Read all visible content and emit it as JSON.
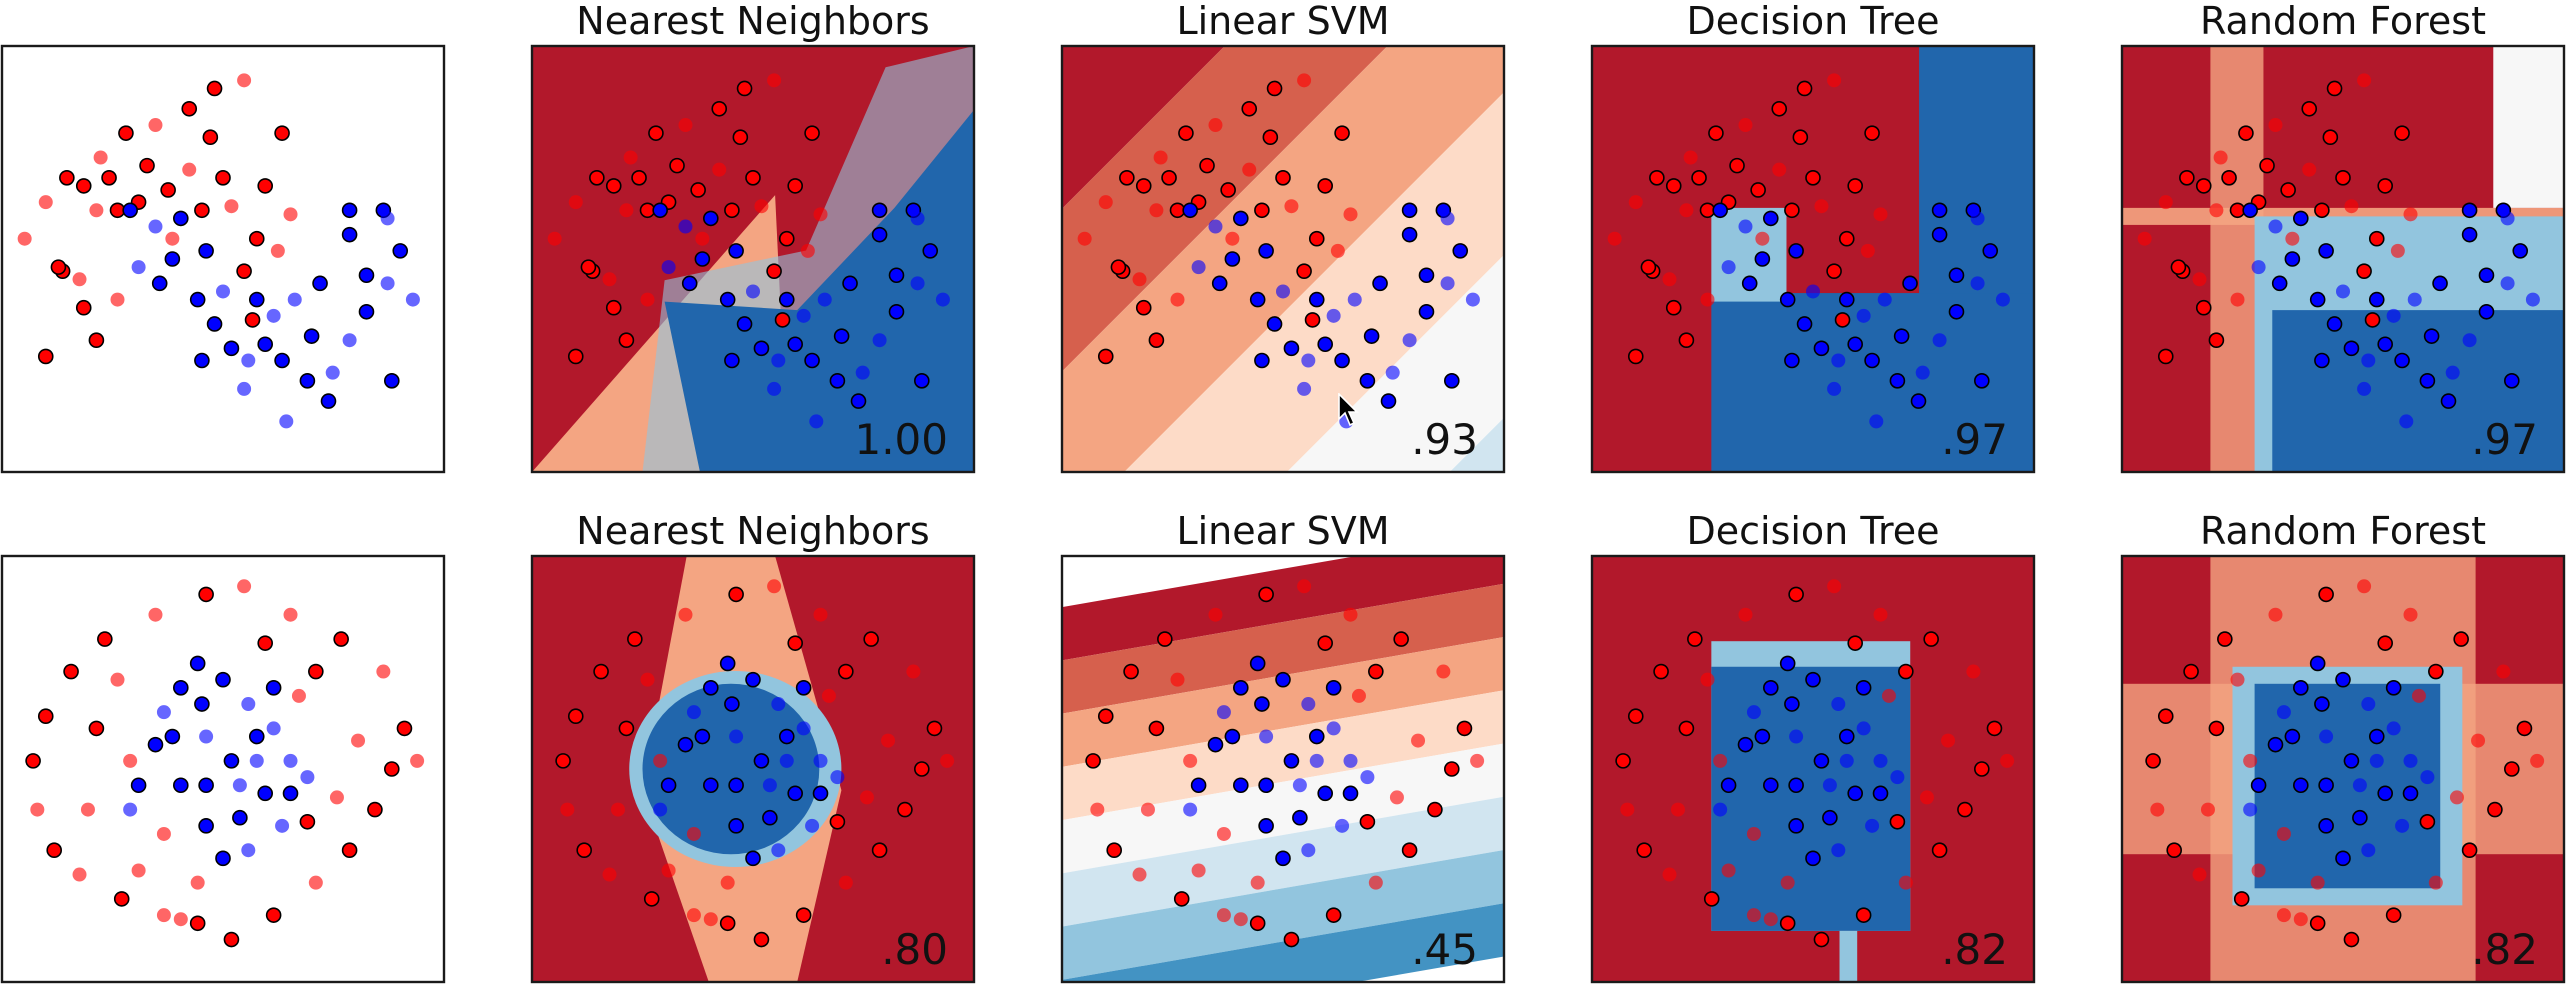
{
  "figure": {
    "colors": {
      "red_point": "#ff0000",
      "blue_point": "#0000ff",
      "test_alpha": 0.6,
      "cmap_rdbu": [
        "#b2182b",
        "#d6604d",
        "#f4a582",
        "#fddbc7",
        "#f7f7f7",
        "#d1e5f0",
        "#92c5de",
        "#4393c3",
        "#2166ac"
      ]
    },
    "cursor_icon": "arrow-pointer-icon"
  },
  "chart_data": [
    {
      "type": "scatter",
      "row": 0,
      "title": "",
      "score": "",
      "note": "input data: training (opaque, black edge) and test (translucent) points"
    },
    {
      "type": "heatmap",
      "row": 0,
      "classifier": "nearest-neighbors",
      "title": "Nearest Neighbors",
      "score": "1.00"
    },
    {
      "type": "heatmap",
      "row": 0,
      "classifier": "linear-svm",
      "title": "Linear SVM",
      "score": ".93"
    },
    {
      "type": "heatmap",
      "row": 0,
      "classifier": "decision-tree",
      "title": "Decision Tree",
      "score": ".97"
    },
    {
      "type": "heatmap",
      "row": 0,
      "classifier": "random-forest",
      "title": "Random Forest",
      "score": ".97"
    },
    {
      "type": "scatter",
      "row": 1,
      "title": "",
      "score": ""
    },
    {
      "type": "heatmap",
      "row": 1,
      "classifier": "nearest-neighbors",
      "title": "Nearest Neighbors",
      "score": ".80"
    },
    {
      "type": "heatmap",
      "row": 1,
      "classifier": "linear-svm",
      "title": "Linear SVM",
      "score": ".45"
    },
    {
      "type": "heatmap",
      "row": 1,
      "classifier": "decision-tree",
      "title": "Decision Tree",
      "score": ".82"
    },
    {
      "type": "heatmap",
      "row": 1,
      "classifier": "random-forest",
      "title": "Random Forest",
      "score": ".82"
    }
  ],
  "datasets": [
    {
      "name_hint": "moons",
      "points": [
        [
          0.55,
          0.94,
          0,
          0
        ],
        [
          0.64,
          0.81,
          0,
          1
        ],
        [
          0.48,
          0.92,
          0,
          1
        ],
        [
          0.42,
          0.87,
          0,
          1
        ],
        [
          0.34,
          0.83,
          0,
          0
        ],
        [
          0.27,
          0.81,
          0,
          1
        ],
        [
          0.21,
          0.75,
          0,
          0
        ],
        [
          0.13,
          0.7,
          0,
          1
        ],
        [
          0.08,
          0.64,
          0,
          0
        ],
        [
          0.03,
          0.55,
          0,
          0
        ],
        [
          0.12,
          0.47,
          0,
          1
        ],
        [
          0.16,
          0.45,
          0,
          0
        ],
        [
          0.17,
          0.38,
          0,
          1
        ],
        [
          0.2,
          0.3,
          0,
          1
        ],
        [
          0.25,
          0.62,
          0,
          1
        ],
        [
          0.2,
          0.62,
          0,
          0
        ],
        [
          0.3,
          0.64,
          0,
          1
        ],
        [
          0.37,
          0.67,
          0,
          1
        ],
        [
          0.42,
          0.72,
          0,
          0
        ],
        [
          0.47,
          0.8,
          0,
          1
        ],
        [
          0.5,
          0.7,
          0,
          1
        ],
        [
          0.52,
          0.63,
          0,
          0
        ],
        [
          0.58,
          0.55,
          0,
          1
        ],
        [
          0.63,
          0.52,
          0,
          0
        ],
        [
          0.66,
          0.61,
          0,
          0
        ],
        [
          0.55,
          0.47,
          0,
          1
        ],
        [
          0.45,
          0.62,
          0,
          1
        ],
        [
          0.38,
          0.55,
          0,
          0
        ],
        [
          0.32,
          0.73,
          0,
          1
        ],
        [
          0.23,
          0.7,
          0,
          1
        ],
        [
          0.17,
          0.68,
          0,
          1
        ],
        [
          0.11,
          0.48,
          0,
          1
        ],
        [
          0.25,
          0.4,
          0,
          0
        ],
        [
          0.57,
          0.35,
          0,
          1
        ],
        [
          0.08,
          0.26,
          0,
          1
        ],
        [
          0.6,
          0.68,
          0,
          1
        ],
        [
          0.28,
          0.62,
          1,
          1
        ],
        [
          0.3,
          0.48,
          1,
          0
        ],
        [
          0.35,
          0.44,
          1,
          1
        ],
        [
          0.38,
          0.5,
          1,
          1
        ],
        [
          0.44,
          0.4,
          1,
          1
        ],
        [
          0.48,
          0.34,
          1,
          1
        ],
        [
          0.52,
          0.28,
          1,
          1
        ],
        [
          0.56,
          0.25,
          1,
          0
        ],
        [
          0.6,
          0.29,
          1,
          1
        ],
        [
          0.64,
          0.25,
          1,
          1
        ],
        [
          0.7,
          0.2,
          1,
          1
        ],
        [
          0.76,
          0.22,
          1,
          0
        ],
        [
          0.8,
          0.3,
          1,
          0
        ],
        [
          0.84,
          0.37,
          1,
          1
        ],
        [
          0.89,
          0.44,
          1,
          0
        ],
        [
          0.92,
          0.52,
          1,
          1
        ],
        [
          0.88,
          0.62,
          1,
          1
        ],
        [
          0.8,
          0.56,
          1,
          1
        ],
        [
          0.73,
          0.44,
          1,
          1
        ],
        [
          0.67,
          0.4,
          1,
          0
        ],
        [
          0.62,
          0.36,
          1,
          0
        ],
        [
          0.58,
          0.4,
          1,
          1
        ],
        [
          0.5,
          0.42,
          1,
          0
        ],
        [
          0.46,
          0.52,
          1,
          1
        ],
        [
          0.4,
          0.6,
          1,
          1
        ],
        [
          0.34,
          0.58,
          1,
          0
        ],
        [
          0.45,
          0.25,
          1,
          1
        ],
        [
          0.55,
          0.18,
          1,
          0
        ],
        [
          0.65,
          0.1,
          1,
          0
        ],
        [
          0.75,
          0.15,
          1,
          1
        ],
        [
          0.9,
          0.2,
          1,
          1
        ],
        [
          0.8,
          0.62,
          1,
          1
        ],
        [
          0.95,
          0.4,
          1,
          0
        ],
        [
          0.89,
          0.6,
          1,
          0
        ],
        [
          0.71,
          0.31,
          1,
          1
        ],
        [
          0.84,
          0.46,
          1,
          1
        ]
      ]
    },
    {
      "name_hint": "circles",
      "points": [
        [
          0.55,
          0.95,
          0,
          0
        ],
        [
          0.66,
          0.88,
          0,
          0
        ],
        [
          0.78,
          0.82,
          0,
          1
        ],
        [
          0.88,
          0.74,
          0,
          0
        ],
        [
          0.93,
          0.6,
          0,
          1
        ],
        [
          0.96,
          0.52,
          0,
          0
        ],
        [
          0.9,
          0.5,
          0,
          1
        ],
        [
          0.86,
          0.4,
          0,
          1
        ],
        [
          0.8,
          0.3,
          0,
          1
        ],
        [
          0.72,
          0.22,
          0,
          0
        ],
        [
          0.62,
          0.14,
          0,
          1
        ],
        [
          0.52,
          0.08,
          0,
          1
        ],
        [
          0.44,
          0.12,
          0,
          1
        ],
        [
          0.36,
          0.14,
          0,
          0
        ],
        [
          0.26,
          0.18,
          0,
          1
        ],
        [
          0.16,
          0.24,
          0,
          0
        ],
        [
          0.1,
          0.3,
          0,
          1
        ],
        [
          0.06,
          0.4,
          0,
          0
        ],
        [
          0.05,
          0.52,
          0,
          1
        ],
        [
          0.08,
          0.63,
          0,
          1
        ],
        [
          0.14,
          0.74,
          0,
          1
        ],
        [
          0.22,
          0.82,
          0,
          1
        ],
        [
          0.34,
          0.88,
          0,
          0
        ],
        [
          0.46,
          0.93,
          0,
          1
        ],
        [
          0.25,
          0.72,
          0,
          0
        ],
        [
          0.2,
          0.6,
          0,
          1
        ],
        [
          0.28,
          0.52,
          0,
          0
        ],
        [
          0.18,
          0.4,
          0,
          0
        ],
        [
          0.36,
          0.34,
          0,
          0
        ],
        [
          0.44,
          0.22,
          0,
          0
        ],
        [
          0.3,
          0.25,
          0,
          0
        ],
        [
          0.4,
          0.13,
          0,
          0
        ],
        [
          0.7,
          0.37,
          0,
          1
        ],
        [
          0.77,
          0.43,
          0,
          0
        ],
        [
          0.82,
          0.57,
          0,
          0
        ],
        [
          0.72,
          0.74,
          0,
          1
        ],
        [
          0.6,
          0.81,
          0,
          1
        ],
        [
          0.68,
          0.68,
          0,
          0
        ],
        [
          0.4,
          0.7,
          1,
          1
        ],
        [
          0.45,
          0.66,
          1,
          1
        ],
        [
          0.5,
          0.72,
          1,
          1
        ],
        [
          0.56,
          0.66,
          1,
          0
        ],
        [
          0.62,
          0.6,
          1,
          0
        ],
        [
          0.66,
          0.52,
          1,
          0
        ],
        [
          0.6,
          0.44,
          1,
          1
        ],
        [
          0.54,
          0.38,
          1,
          1
        ],
        [
          0.46,
          0.36,
          1,
          1
        ],
        [
          0.4,
          0.46,
          1,
          1
        ],
        [
          0.34,
          0.56,
          1,
          1
        ],
        [
          0.36,
          0.64,
          1,
          0
        ],
        [
          0.3,
          0.46,
          1,
          1
        ],
        [
          0.28,
          0.4,
          1,
          0
        ],
        [
          0.52,
          0.52,
          1,
          1
        ],
        [
          0.46,
          0.58,
          1,
          0
        ],
        [
          0.58,
          0.52,
          1,
          0
        ],
        [
          0.62,
          0.7,
          1,
          1
        ],
        [
          0.5,
          0.28,
          1,
          1
        ],
        [
          0.56,
          0.3,
          1,
          0
        ],
        [
          0.7,
          0.48,
          1,
          0
        ],
        [
          0.38,
          0.58,
          1,
          1
        ],
        [
          0.46,
          0.46,
          1,
          1
        ],
        [
          0.54,
          0.46,
          1,
          0
        ],
        [
          0.64,
          0.36,
          1,
          0
        ],
        [
          0.58,
          0.58,
          1,
          1
        ],
        [
          0.44,
          0.76,
          1,
          1
        ],
        [
          0.66,
          0.44,
          1,
          1
        ]
      ]
    }
  ]
}
